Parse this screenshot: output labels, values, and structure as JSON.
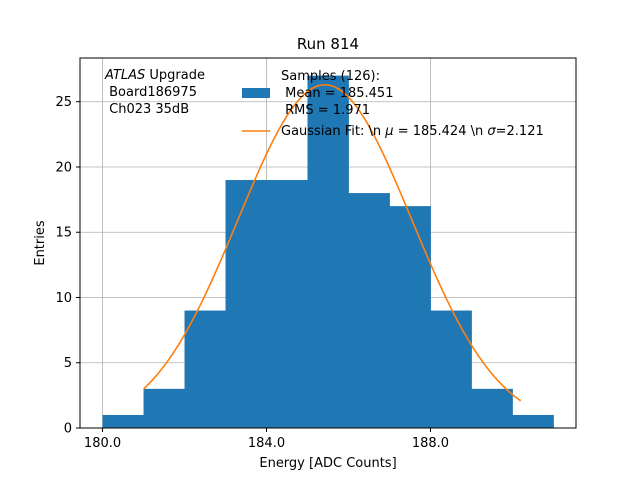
{
  "chart_data": {
    "type": "bar",
    "title": "Run 814",
    "xlabel": "Energy [ADC Counts]",
    "ylabel": "Entries",
    "xlim": [
      179.45,
      191.55
    ],
    "ylim": [
      0,
      28.35
    ],
    "grid": true,
    "xticks": [
      180,
      184,
      188
    ],
    "xtick_labels": [
      "180.0",
      "184.0",
      "188.0"
    ],
    "yticks": [
      0,
      5,
      10,
      15,
      20,
      25
    ],
    "ytick_labels": [
      "0",
      "5",
      "10",
      "15",
      "20",
      "25"
    ],
    "bin_edges": [
      180,
      181,
      182,
      183,
      184,
      185,
      186,
      187,
      188,
      189,
      190,
      191
    ],
    "values": [
      1,
      3,
      9,
      19,
      19,
      27,
      18,
      17,
      9,
      3,
      1
    ],
    "bar_color": "#1f77b4",
    "fit": {
      "name": "Gaussian Fit",
      "mu": 185.424,
      "sigma": 2.121,
      "amplitude": 26.3,
      "x_range": [
        181,
        190.2
      ],
      "color": "#ff7f0e"
    },
    "annotation": {
      "prefix_italic": "ATLAS",
      "suffix": " Upgrade",
      "line2": " Board186975",
      "line3": " Ch023 35dB"
    },
    "legend": {
      "location": "upper-right",
      "entries": [
        {
          "kind": "patch",
          "line1": "Samples (126):",
          "line2": " Mean = 185.451",
          "line3": " RMS = 1.971"
        },
        {
          "kind": "line",
          "text_prefix": "Gaussian Fit: \\n ",
          "mu_symbol": "μ",
          "mu_text": " = 185.424 \\n ",
          "sigma_symbol": "σ",
          "sigma_text": "=2.121"
        }
      ]
    }
  }
}
